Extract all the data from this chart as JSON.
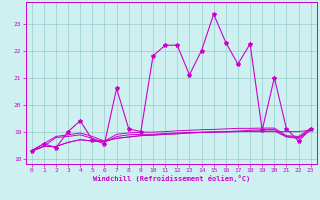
{
  "xlabel": "Windchill (Refroidissement éolien,°C)",
  "bg_color": "#cff0f0",
  "line_color": "#cc00cc",
  "grid_color": "#99cccc",
  "xlim": [
    -0.5,
    23.5
  ],
  "ylim": [
    17.8,
    23.8
  ],
  "yticks": [
    18,
    19,
    20,
    21,
    22,
    23
  ],
  "xticks": [
    0,
    1,
    2,
    3,
    4,
    5,
    6,
    7,
    8,
    9,
    10,
    11,
    12,
    13,
    14,
    15,
    16,
    17,
    18,
    19,
    20,
    21,
    22,
    23
  ],
  "series_main_x": [
    0,
    1,
    2,
    3,
    4,
    5,
    6,
    7,
    8,
    9,
    10,
    11,
    12,
    13,
    14,
    15,
    16,
    17,
    18,
    19,
    20,
    21,
    22,
    23
  ],
  "series_main_y": [
    18.3,
    18.55,
    18.4,
    19.0,
    19.4,
    18.7,
    18.55,
    20.6,
    19.1,
    19.0,
    21.8,
    22.2,
    22.2,
    21.1,
    22.0,
    23.35,
    22.3,
    21.5,
    22.25,
    19.05,
    21.0,
    19.1,
    18.65,
    19.1
  ],
  "series_flat": [
    [
      18.28,
      18.45,
      18.45,
      18.6,
      18.7,
      18.65,
      18.65,
      18.75,
      18.8,
      18.85,
      18.87,
      18.9,
      18.92,
      18.95,
      18.97,
      18.98,
      18.99,
      19.0,
      19.0,
      19.0,
      19.0,
      19.0,
      19.0,
      19.05
    ],
    [
      18.28,
      18.45,
      18.45,
      18.6,
      18.7,
      18.65,
      18.65,
      18.75,
      18.8,
      18.85,
      18.87,
      18.9,
      18.92,
      18.95,
      18.97,
      18.98,
      18.99,
      19.0,
      19.02,
      19.02,
      19.02,
      18.8,
      18.75,
      19.05
    ],
    [
      18.28,
      18.45,
      18.78,
      18.82,
      18.88,
      18.75,
      18.6,
      18.82,
      18.88,
      18.9,
      18.9,
      18.93,
      18.95,
      18.97,
      18.98,
      18.99,
      19.0,
      19.02,
      19.05,
      19.07,
      19.08,
      18.82,
      18.78,
      19.07
    ],
    [
      18.28,
      18.55,
      18.82,
      18.88,
      18.95,
      18.82,
      18.65,
      18.9,
      18.95,
      18.98,
      18.98,
      19.0,
      19.03,
      19.05,
      19.07,
      19.08,
      19.1,
      19.12,
      19.12,
      19.13,
      19.13,
      18.85,
      18.82,
      19.13
    ]
  ]
}
